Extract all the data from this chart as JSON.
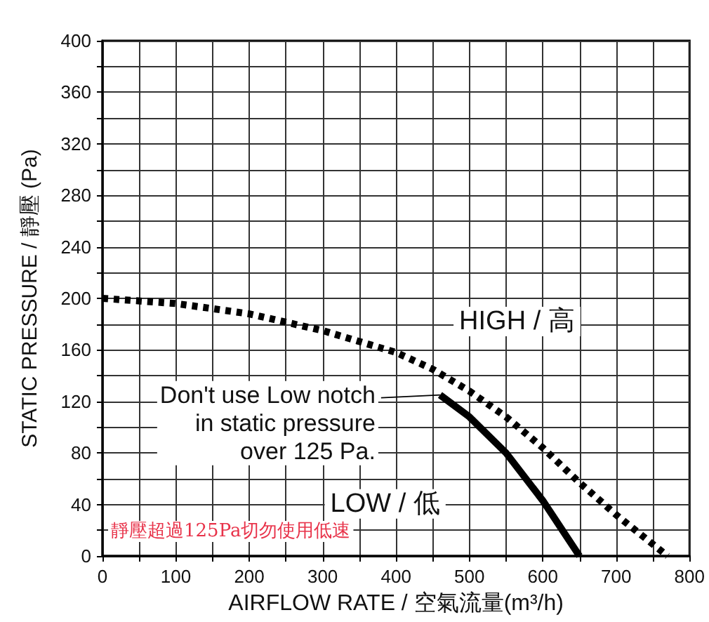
{
  "chart_data": {
    "type": "line",
    "xlabel": "AIRFLOW RATE / 空氣流量(m³/h)",
    "ylabel": "STATIC PRESSURE / 靜壓 (Pa)",
    "xlim": [
      0,
      800
    ],
    "ylim": [
      0,
      400
    ],
    "xticks": [
      0,
      {
        "value": 50,
        "label": null
      },
      100,
      {
        "value": 150,
        "label": null
      },
      200,
      {
        "value": 250,
        "label": null
      },
      300,
      {
        "value": 350,
        "label": null
      },
      400,
      {
        "value": 450,
        "label": null
      },
      500,
      {
        "value": 550,
        "label": null
      },
      600,
      {
        "value": 650,
        "label": null
      },
      700,
      {
        "value": 750,
        "label": null
      },
      800
    ],
    "yticks": [
      0,
      {
        "value": 20,
        "label": null
      },
      40,
      {
        "value": 60,
        "label": null
      },
      80,
      {
        "value": 100,
        "label": null
      },
      120,
      {
        "value": 140,
        "label": null
      },
      160,
      {
        "value": 180,
        "label": null
      },
      200,
      {
        "value": 220,
        "label": null
      },
      240,
      {
        "value": 260,
        "label": null
      },
      280,
      {
        "value": 300,
        "label": null
      },
      320,
      {
        "value": 340,
        "label": null
      },
      360,
      {
        "value": 380,
        "label": null
      },
      400
    ],
    "grid": true,
    "legend": false,
    "marker": "none",
    "series": [
      {
        "name": "HIGH / 高",
        "color": "#000000",
        "line_style": "dashed",
        "x": [
          0,
          100,
          200,
          300,
          400,
          450,
          500,
          550,
          600,
          650,
          700,
          770
        ],
        "values": [
          200,
          196,
          188,
          175,
          158,
          145,
          128,
          108,
          84,
          57,
          32,
          0
        ]
      },
      {
        "name": "LOW / 低",
        "color": "#000000",
        "line_style": "solid",
        "x": [
          460,
          500,
          550,
          600,
          650
        ],
        "values": [
          125,
          108,
          80,
          43,
          0
        ]
      }
    ],
    "annotations": [
      {
        "text": "Don't use Low notch\nin static pressure\nover 125 Pa.",
        "x": 460,
        "y": 125
      },
      "靜壓超過125Pa切勿使用低速"
    ]
  }
}
